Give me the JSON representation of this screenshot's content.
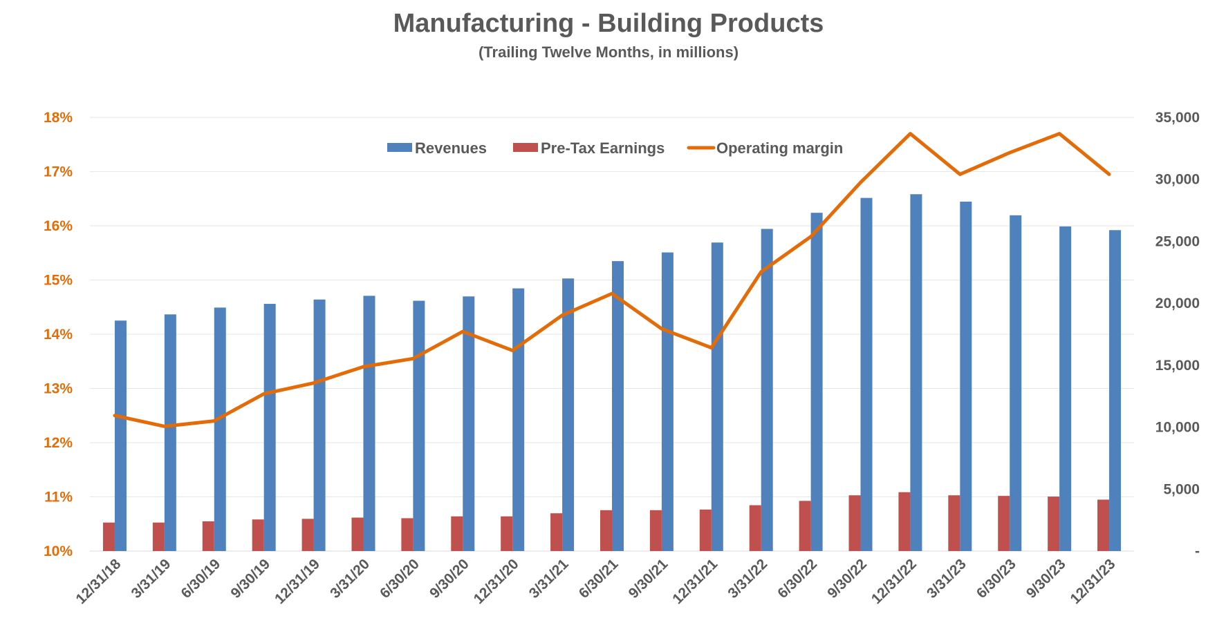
{
  "chart_data": {
    "type": "bar",
    "title": "Manufacturing - Building Products",
    "subtitle": "(Trailing Twelve Months, in millions)",
    "categories": [
      "12/31/18",
      "3/31/19",
      "6/30/19",
      "9/30/19",
      "12/31/19",
      "3/31/20",
      "6/30/20",
      "9/30/20",
      "12/31/20",
      "3/31/21",
      "6/30/21",
      "9/30/21",
      "12/31/21",
      "3/31/22",
      "6/30/22",
      "9/30/22",
      "12/31/22",
      "3/31/23",
      "6/30/23",
      "9/30/23",
      "12/31/23"
    ],
    "series": [
      {
        "name": "Revenues",
        "type": "bar",
        "axis": "right",
        "color": "#4F81BD",
        "values": [
          18600,
          19100,
          19650,
          19950,
          20300,
          20600,
          20200,
          20550,
          21200,
          22000,
          23400,
          24100,
          24900,
          26000,
          27300,
          28500,
          28800,
          28200,
          27100,
          26200,
          25900
        ]
      },
      {
        "name": "Pre-Tax Earnings",
        "type": "bar",
        "axis": "right",
        "color": "#C0504D",
        "values": [
          2300,
          2300,
          2400,
          2550,
          2600,
          2700,
          2650,
          2800,
          2800,
          3050,
          3300,
          3300,
          3350,
          3700,
          4050,
          4500,
          4750,
          4500,
          4450,
          4400,
          4150
        ]
      },
      {
        "name": "Operating margin",
        "type": "line",
        "axis": "left",
        "color": "#E36C09",
        "values": [
          12.5,
          12.3,
          12.4,
          12.9,
          13.1,
          13.4,
          13.55,
          14.05,
          13.7,
          14.35,
          14.75,
          14.1,
          13.75,
          15.15,
          15.8,
          16.8,
          17.7,
          16.95,
          17.35,
          17.7,
          16.95
        ]
      }
    ],
    "left_axis": {
      "min": 10,
      "max": 18,
      "ticks": [
        "10%",
        "11%",
        "12%",
        "13%",
        "14%",
        "15%",
        "16%",
        "17%",
        "18%"
      ],
      "color": "#E36C09"
    },
    "right_axis": {
      "min": 0,
      "max": 35000,
      "ticks": [
        "-",
        "5,000",
        "10,000",
        "15,000",
        "20,000",
        "25,000",
        "30,000",
        "35,000"
      ],
      "color": "#595959"
    },
    "grid": true,
    "legend_position": "top"
  }
}
